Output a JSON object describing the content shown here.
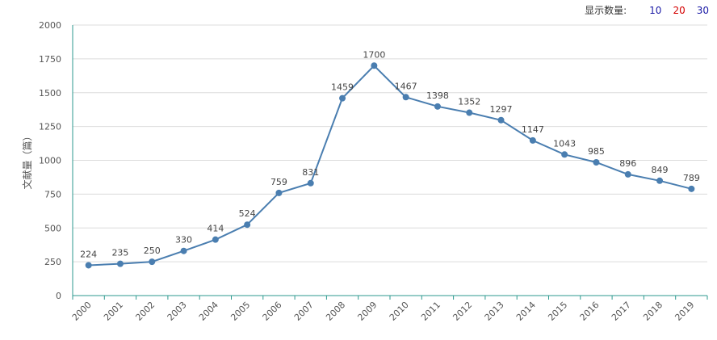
{
  "controls": {
    "label": "显示数量:",
    "options": [
      {
        "label": "10",
        "color": "#1a1aa6"
      },
      {
        "label": "20",
        "color": "#d40000"
      },
      {
        "label": "30",
        "color": "#1a1aa6"
      }
    ]
  },
  "chart_data": {
    "type": "line",
    "title": "",
    "xlabel": "",
    "ylabel": "文献量（篇）",
    "ylim": [
      0,
      2000
    ],
    "yticks": [
      0,
      250,
      500,
      750,
      1000,
      1250,
      1500,
      1750,
      2000
    ],
    "categories": [
      "2000",
      "2001",
      "2002",
      "2003",
      "2004",
      "2005",
      "2006",
      "2007",
      "2008",
      "2009",
      "2010",
      "2011",
      "2012",
      "2013",
      "2014",
      "2015",
      "2016",
      "2017",
      "2018",
      "2019"
    ],
    "series": [
      {
        "values": [
          224,
          235,
          250,
          330,
          414,
          524,
          759,
          831,
          1459,
          1700,
          1467,
          1398,
          1352,
          1297,
          1147,
          1043,
          985,
          896,
          849,
          789
        ]
      }
    ],
    "grid": true,
    "line_color": "#4a7eb0",
    "axis_color": "#2e9a8f"
  }
}
